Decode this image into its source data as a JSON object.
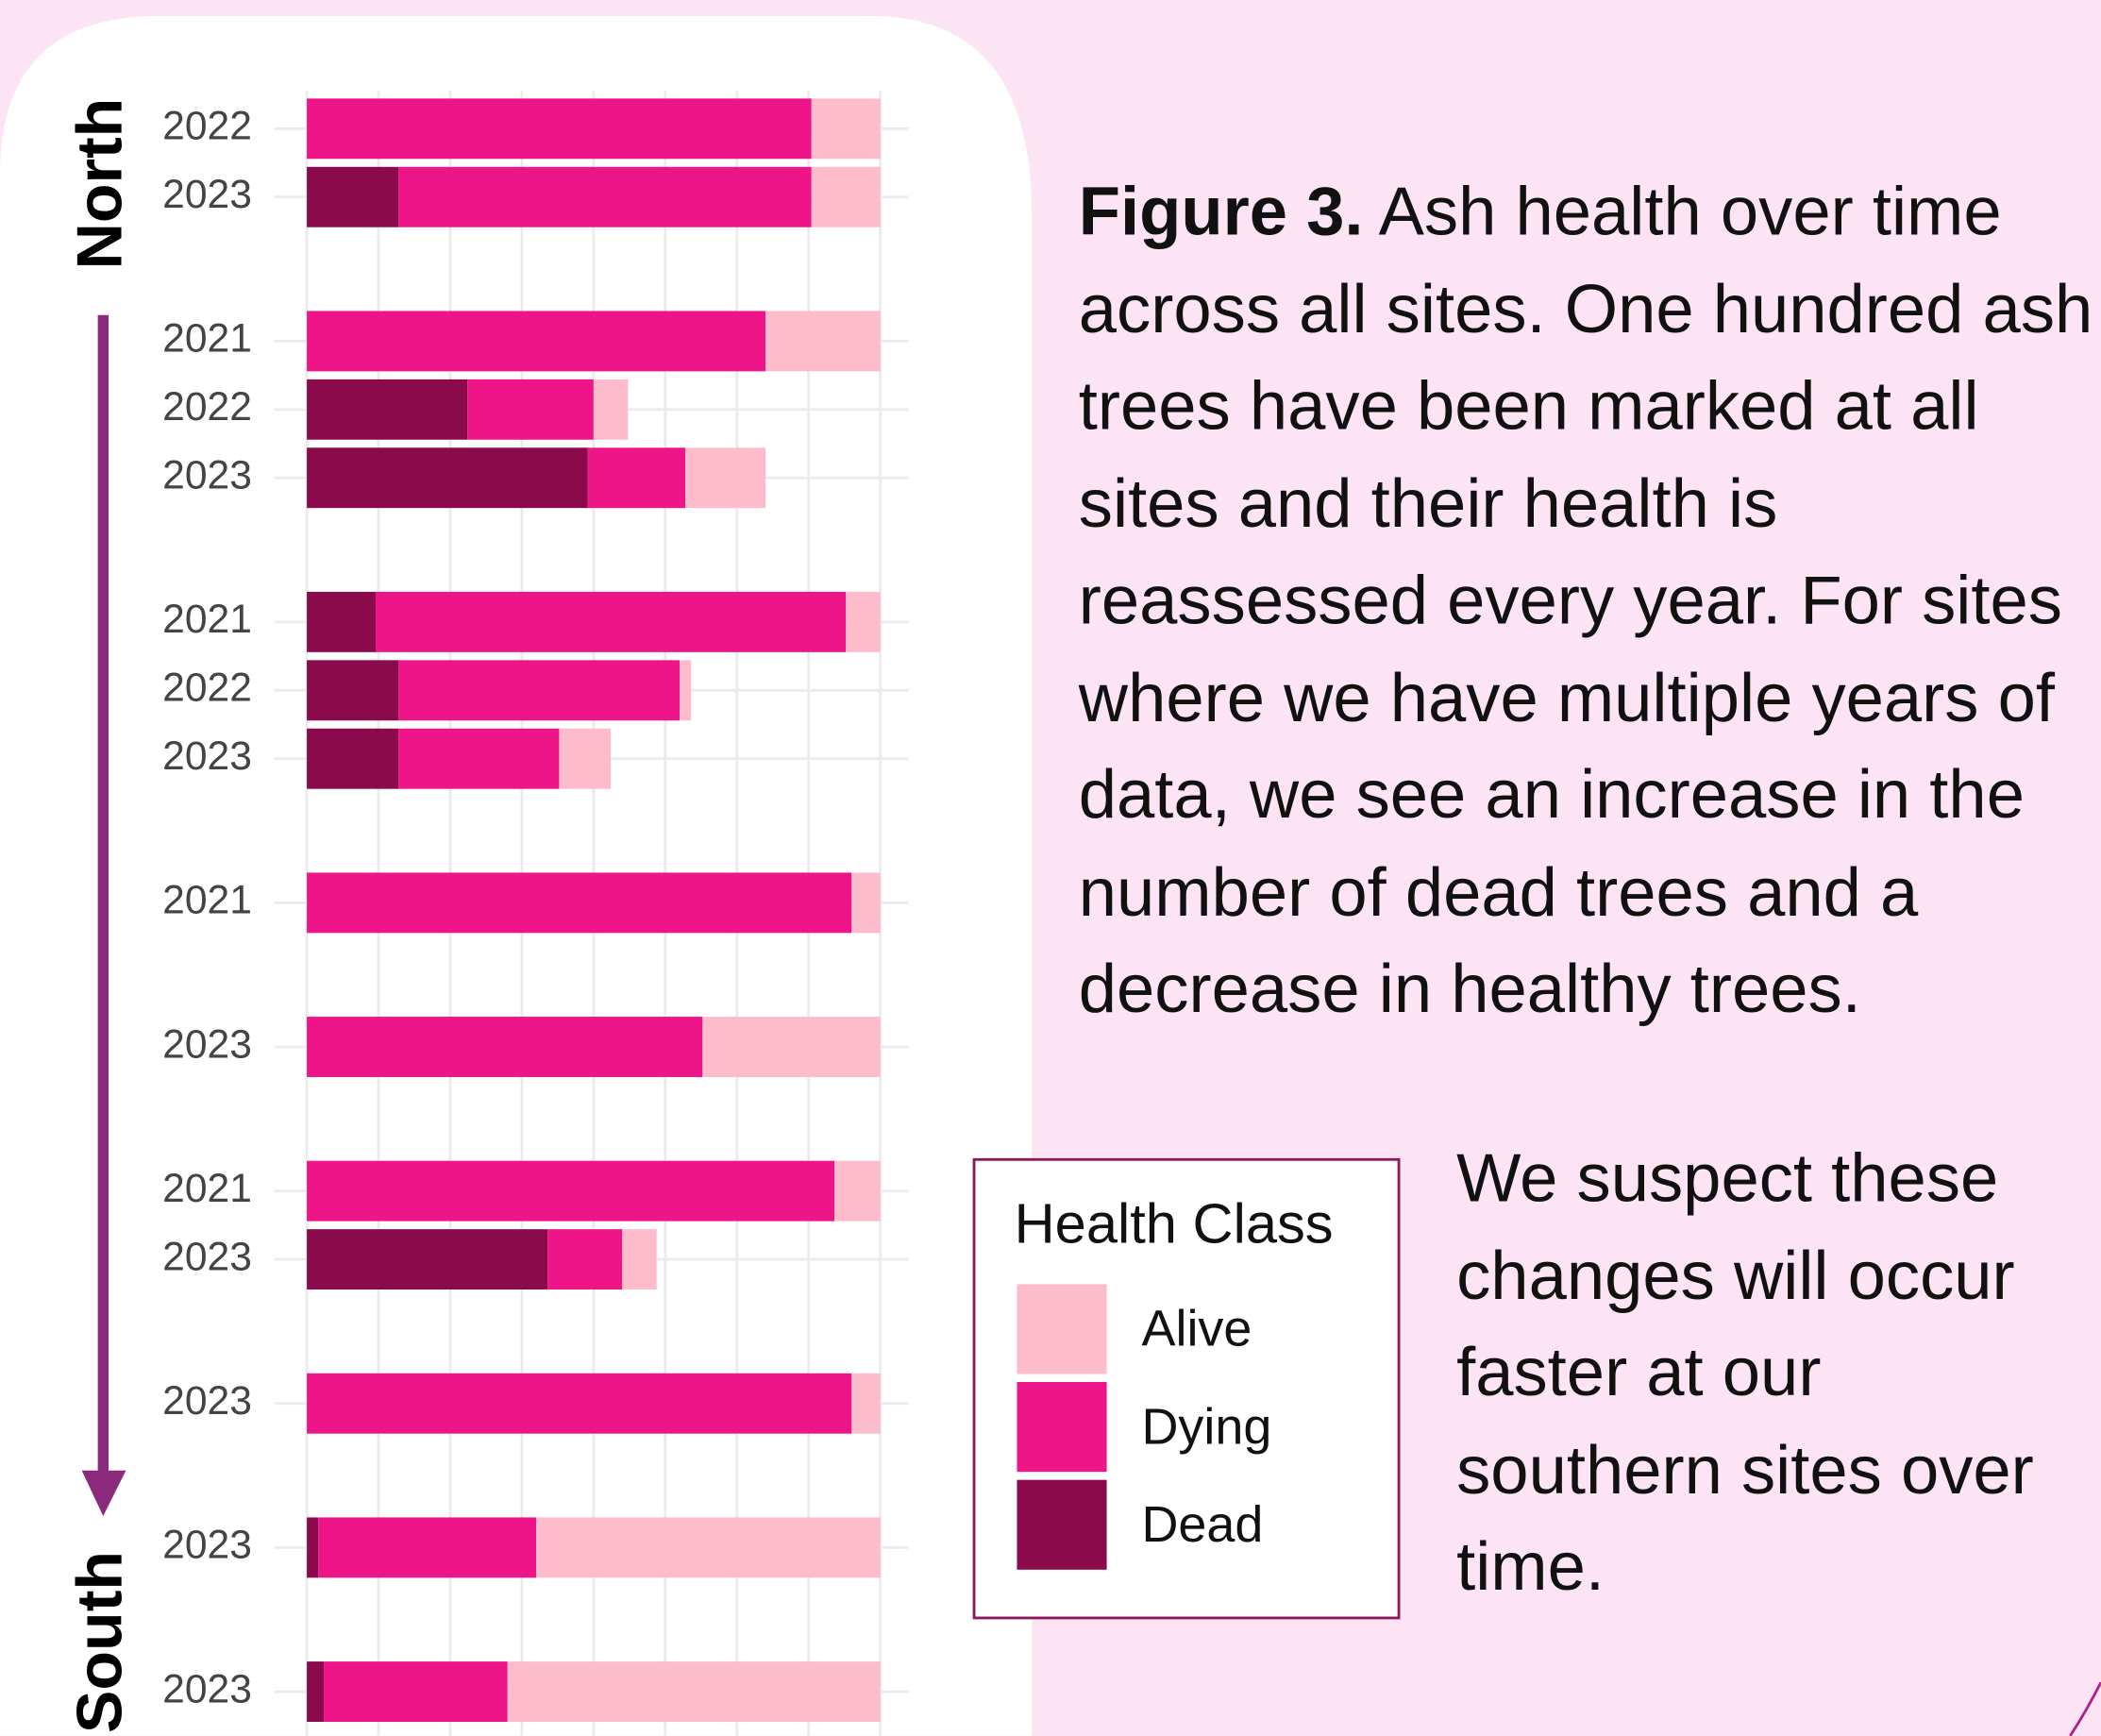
{
  "chart_data": {
    "type": "stacked-barh",
    "y_axis_start": "North",
    "y_axis_end": "South",
    "legend_title": "Health Class",
    "categories": [
      [
        "2022",
        "2023"
      ],
      [
        "2021",
        "2022",
        "2023"
      ],
      [
        "2021",
        "2022",
        "2023"
      ],
      [
        "2021"
      ],
      [
        "2023"
      ],
      [
        "2021",
        "2023"
      ],
      [
        "2023"
      ],
      [
        "2023"
      ],
      [
        "2023"
      ]
    ],
    "series": [
      {
        "name": "Alive",
        "color": "#fdbccb",
        "values": [
          [
            12,
            12
          ],
          [
            20,
            6,
            14
          ],
          [
            6,
            2,
            9
          ],
          [
            5
          ],
          [
            31
          ],
          [
            8,
            6
          ],
          [
            5
          ],
          [
            60
          ],
          [
            65
          ]
        ]
      },
      {
        "name": "Dying",
        "color": "#ed1587",
        "values": [
          [
            88,
            72
          ],
          [
            80,
            22,
            17
          ],
          [
            82,
            49,
            28
          ],
          [
            95
          ],
          [
            69
          ],
          [
            92,
            13
          ],
          [
            95
          ],
          [
            38
          ],
          [
            32
          ]
        ]
      },
      {
        "name": "Dead",
        "color": "#8a0a4c",
        "values": [
          [
            0,
            16
          ],
          [
            0,
            28,
            49
          ],
          [
            12,
            16,
            16
          ],
          [
            0
          ],
          [
            0
          ],
          [
            0,
            42
          ],
          [
            0
          ],
          [
            2
          ],
          [
            3
          ]
        ]
      }
    ],
    "xlim": [
      0,
      100
    ],
    "xticks": [
      0,
      12.5,
      25,
      37.5,
      50,
      62.5,
      75,
      87.5,
      100
    ],
    "grid": true
  },
  "caption": {
    "label": "Figure 3.",
    "text": "Ash health over time across all sites. One hundred ash trees have been marked at all sites and their health is reassessed every year. For sites where we have multiple years of data, we see an increase in the number of dead trees and a decrease in healthy trees."
  },
  "note": "We suspect these changes will occur faster at our southern sites over time."
}
